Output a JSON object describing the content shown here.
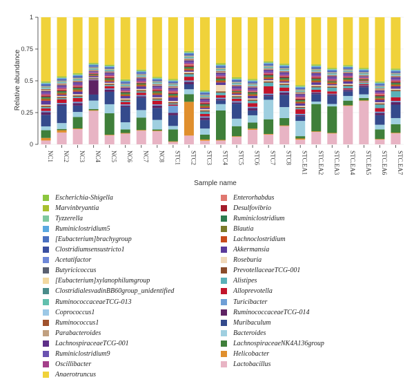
{
  "chart_data": {
    "type": "bar",
    "stacked": true,
    "xlabel": "Sample name",
    "ylabel": "Relative abundance",
    "ylim": [
      0,
      1
    ],
    "yticks": [
      "0",
      "0.25",
      "0.5",
      "0.75",
      "1"
    ],
    "categories": [
      "NC1",
      "NC2",
      "NC3",
      "NC4",
      "NC5",
      "NC6",
      "NC7",
      "NC8",
      "STC1",
      "STC2",
      "STC3",
      "STC4",
      "STC5",
      "STC6",
      "STC7",
      "STC8",
      "STC.EA1",
      "STC.EA2",
      "STC.EA3",
      "STC.EA4",
      "STC.EA5",
      "STC.EA6",
      "STC.EA7"
    ],
    "series": [
      {
        "name": "Lactobacillus",
        "color": "#e8b4c4",
        "values": [
          0.03,
          0.1,
          0.12,
          0.28,
          0.08,
          0.09,
          0.11,
          0.11,
          0.02,
          0.07,
          0.03,
          0.03,
          0.06,
          0.12,
          0.08,
          0.15,
          0.04,
          0.1,
          0.09,
          0.33,
          0.36,
          0.04,
          0.09
        ]
      },
      {
        "name": "Helicobacter",
        "color": "#e08f2d",
        "values": [
          0.02,
          0.02,
          0.005,
          0.005,
          0.005,
          0.005,
          0.005,
          0.005,
          0.005,
          0.27,
          0.01,
          0.005,
          0.005,
          0.01,
          0.005,
          0.005,
          0.01,
          0.005,
          0.005,
          0.005,
          0.005,
          0.005,
          0.005
        ]
      },
      {
        "name": "LachnospiraceaeNK4A136group",
        "color": "#3f7f3a",
        "values": [
          0.06,
          0.01,
          0.09,
          0.01,
          0.19,
          0.03,
          0.1,
          0.01,
          0.1,
          0.06,
          0.04,
          0.23,
          0.08,
          0.05,
          0.12,
          0.06,
          0.02,
          0.22,
          0.22,
          0.04,
          0.02,
          0.08,
          0.07
        ]
      },
      {
        "name": "Bacteroides",
        "color": "#9fcfe0",
        "values": [
          0.03,
          0.05,
          0.04,
          0.07,
          0.08,
          0.06,
          0.06,
          0.08,
          0.03,
          0.04,
          0.05,
          0.05,
          0.06,
          0.06,
          0.16,
          0.09,
          0.13,
          0.02,
          0.02,
          0.04,
          0.03,
          0.04,
          0.05
        ]
      },
      {
        "name": "Muribaculum",
        "color": "#344a8c",
        "values": [
          0.09,
          0.15,
          0.05,
          0.05,
          0.11,
          0.13,
          0.1,
          0.1,
          0.09,
          0.04,
          0.07,
          0.03,
          0.12,
          0.04,
          0.03,
          0.1,
          0.04,
          0.06,
          0.07,
          0.04,
          0.06,
          0.08,
          0.11
        ]
      },
      {
        "name": "RuminococcaceaeTCG-014",
        "color": "#5e2363",
        "values": [
          0.02,
          0.01,
          0.02,
          0.12,
          0.02,
          0.01,
          0.01,
          0.02,
          0.02,
          0.02,
          0.02,
          0.01,
          0.01,
          0.02,
          0.01,
          0.02,
          0.01,
          0.01,
          0.01,
          0.01,
          0.01,
          0.02,
          0.02
        ]
      },
      {
        "name": "Turicibacter",
        "color": "#6f9fd6",
        "values": [
          0.01,
          0.01,
          0.01,
          0.005,
          0.01,
          0.01,
          0.01,
          0.01,
          0.06,
          0.01,
          0.01,
          0.01,
          0.01,
          0.01,
          0.01,
          0.01,
          0.01,
          0.005,
          0.005,
          0.005,
          0.005,
          0.01,
          0.01
        ]
      },
      {
        "name": "Alloprevotella",
        "color": "#c2142b",
        "values": [
          0.02,
          0.03,
          0.03,
          0.005,
          0.02,
          0.02,
          0.02,
          0.03,
          0.01,
          0.03,
          0.02,
          0.02,
          0.02,
          0.03,
          0.06,
          0.03,
          0.04,
          0.02,
          0.02,
          0.01,
          0.01,
          0.03,
          0.03
        ]
      },
      {
        "name": "Alistipes",
        "color": "#5ab0b8",
        "values": [
          0.01,
          0.01,
          0.01,
          0.005,
          0.01,
          0.01,
          0.01,
          0.01,
          0.01,
          0.02,
          0.02,
          0.02,
          0.01,
          0.02,
          0.03,
          0.02,
          0.01,
          0.02,
          0.03,
          0.02,
          0.01,
          0.03,
          0.05
        ]
      },
      {
        "name": "PrevotellaceaeTCG-001",
        "color": "#8a4b2a",
        "values": [
          0.01,
          0.01,
          0.01,
          0.005,
          0.01,
          0.01,
          0.01,
          0.01,
          0.01,
          0.01,
          0.01,
          0.01,
          0.01,
          0.01,
          0.01,
          0.01,
          0.01,
          0.01,
          0.01,
          0.01,
          0.005,
          0.01,
          0.01
        ]
      },
      {
        "name": "Roseburia",
        "color": "#f0d8b8",
        "values": [
          0.01,
          0.01,
          0.01,
          0.005,
          0.01,
          0.01,
          0.01,
          0.01,
          0.01,
          0.01,
          0.01,
          0.05,
          0.01,
          0.01,
          0.01,
          0.01,
          0.01,
          0.01,
          0.01,
          0.01,
          0.005,
          0.01,
          0.01
        ]
      },
      {
        "name": "Akkermansia",
        "color": "#5a3a9a",
        "values": [
          0.03,
          0.01,
          0.02,
          0.01,
          0.01,
          0.02,
          0.02,
          0.02,
          0.03,
          0.01,
          0.01,
          0.02,
          0.01,
          0.02,
          0.01,
          0.01,
          0.02,
          0.02,
          0.01,
          0.02,
          0.005,
          0.02,
          0.02
        ]
      },
      {
        "name": "Lachnoclostridium",
        "color": "#c84a1a",
        "values": [
          0.01,
          0.01,
          0.01,
          0.005,
          0.01,
          0.01,
          0.01,
          0.01,
          0.01,
          0.01,
          0.01,
          0.01,
          0.01,
          0.01,
          0.01,
          0.01,
          0.01,
          0.01,
          0.01,
          0.01,
          0.005,
          0.01,
          0.01
        ]
      },
      {
        "name": "Blautia",
        "color": "#7a7a2a",
        "values": [
          0.01,
          0.01,
          0.01,
          0.005,
          0.01,
          0.01,
          0.01,
          0.01,
          0.01,
          0.01,
          0.01,
          0.01,
          0.005,
          0.01,
          0.01,
          0.01,
          0.01,
          0.01,
          0.01,
          0.01,
          0.005,
          0.01,
          0.01
        ]
      },
      {
        "name": "Ruminiclostridium",
        "color": "#2e7a4f",
        "values": [
          0.01,
          0.01,
          0.01,
          0.005,
          0.01,
          0.01,
          0.005,
          0.01,
          0.01,
          0.01,
          0.01,
          0.01,
          0.005,
          0.01,
          0.01,
          0.01,
          0.01,
          0.01,
          0.005,
          0.01,
          0.005,
          0.01,
          0.01
        ]
      },
      {
        "name": "Desulfovibrio",
        "color": "#a31b2a",
        "values": [
          0.01,
          0.01,
          0.01,
          0.005,
          0.01,
          0.005,
          0.005,
          0.01,
          0.01,
          0.01,
          0.01,
          0.01,
          0.005,
          0.005,
          0.01,
          0.01,
          0.01,
          0.01,
          0.005,
          0.005,
          0.005,
          0.01,
          0.01
        ]
      },
      {
        "name": "Enterorhabdus",
        "color": "#e07870",
        "values": [
          0.005,
          0.01,
          0.005,
          0.005,
          0.01,
          0.005,
          0.005,
          0.005,
          0.01,
          0.01,
          0.005,
          0.005,
          0.005,
          0.005,
          0.005,
          0.005,
          0.01,
          0.005,
          0.005,
          0.005,
          0.005,
          0.01,
          0.005
        ]
      },
      {
        "name": "Oscillibacter",
        "color": "#a4408a",
        "values": [
          0.01,
          0.01,
          0.01,
          0.005,
          0.01,
          0.01,
          0.01,
          0.01,
          0.01,
          0.01,
          0.01,
          0.01,
          0.01,
          0.01,
          0.01,
          0.01,
          0.01,
          0.01,
          0.01,
          0.01,
          0.005,
          0.01,
          0.01
        ]
      },
      {
        "name": "Ruminiclostridium9",
        "color": "#6a52b0",
        "values": [
          0.01,
          0.01,
          0.01,
          0.005,
          0.01,
          0.01,
          0.01,
          0.01,
          0.01,
          0.01,
          0.01,
          0.01,
          0.01,
          0.01,
          0.01,
          0.01,
          0.01,
          0.01,
          0.01,
          0.01,
          0.005,
          0.01,
          0.01
        ]
      },
      {
        "name": "LachnospiraceaeTCG-001",
        "color": "#5e2f88",
        "values": [
          0.01,
          0.01,
          0.01,
          0.005,
          0.01,
          0.01,
          0.01,
          0.01,
          0.01,
          0.01,
          0.01,
          0.01,
          0.01,
          0.01,
          0.01,
          0.01,
          0.01,
          0.01,
          0.01,
          0.01,
          0.005,
          0.01,
          0.01
        ]
      },
      {
        "name": "Parabacteroides",
        "color": "#c0a080",
        "values": [
          0.01,
          0.01,
          0.005,
          0.005,
          0.005,
          0.005,
          0.005,
          0.01,
          0.01,
          0.01,
          0.005,
          0.01,
          0.005,
          0.005,
          0.005,
          0.005,
          0.01,
          0.005,
          0.005,
          0.005,
          0.005,
          0.01,
          0.005
        ]
      },
      {
        "name": "Ruminococcus1",
        "color": "#a0522d",
        "values": [
          0.005,
          0.005,
          0.005,
          0.005,
          0.005,
          0.005,
          0.005,
          0.005,
          0.005,
          0.005,
          0.005,
          0.005,
          0.005,
          0.005,
          0.005,
          0.005,
          0.005,
          0.005,
          0.005,
          0.005,
          0.005,
          0.005,
          0.005
        ]
      },
      {
        "name": "Coprococcus1",
        "color": "#9cc8e6",
        "values": [
          0.005,
          0.005,
          0.005,
          0.005,
          0.005,
          0.005,
          0.005,
          0.005,
          0.005,
          0.005,
          0.005,
          0.005,
          0.005,
          0.005,
          0.005,
          0.005,
          0.005,
          0.005,
          0.005,
          0.005,
          0.005,
          0.005,
          0.005
        ]
      },
      {
        "name": "RuminococcaceaeTCG-013",
        "color": "#62c0ae",
        "values": [
          0.005,
          0.005,
          0.005,
          0.005,
          0.005,
          0.005,
          0.005,
          0.005,
          0.005,
          0.005,
          0.005,
          0.005,
          0.005,
          0.005,
          0.005,
          0.005,
          0.005,
          0.005,
          0.005,
          0.005,
          0.005,
          0.005,
          0.005
        ]
      },
      {
        "name": "ClostridialesvadinBB60group_unidentified",
        "color": "#4a8c8a",
        "values": [
          0.005,
          0.005,
          0.005,
          0.005,
          0.005,
          0.005,
          0.005,
          0.005,
          0.005,
          0.005,
          0.005,
          0.005,
          0.005,
          0.005,
          0.005,
          0.005,
          0.005,
          0.005,
          0.005,
          0.005,
          0.005,
          0.005,
          0.005
        ]
      },
      {
        "name": "[Eubacterium]xylanophilumgroup",
        "color": "#f2d8a0",
        "values": [
          0.005,
          0.005,
          0.005,
          0.005,
          0.005,
          0.005,
          0.005,
          0.005,
          0.005,
          0.005,
          0.005,
          0.005,
          0.005,
          0.005,
          0.005,
          0.005,
          0.005,
          0.005,
          0.005,
          0.005,
          0.005,
          0.005,
          0.005
        ]
      },
      {
        "name": "Butyricicoccus",
        "color": "#5a6070",
        "values": [
          0.005,
          0.005,
          0.005,
          0.005,
          0.005,
          0.005,
          0.005,
          0.005,
          0.005,
          0.005,
          0.005,
          0.005,
          0.005,
          0.005,
          0.005,
          0.005,
          0.005,
          0.005,
          0.005,
          0.005,
          0.005,
          0.005,
          0.005
        ]
      },
      {
        "name": "Acetatifactor",
        "color": "#6e88d8",
        "values": [
          0.005,
          0.005,
          0.005,
          0.005,
          0.005,
          0.005,
          0.005,
          0.005,
          0.005,
          0.005,
          0.005,
          0.005,
          0.005,
          0.005,
          0.005,
          0.005,
          0.005,
          0.005,
          0.005,
          0.005,
          0.005,
          0.005,
          0.005
        ]
      },
      {
        "name": "Clostridiumsensustricto1",
        "color": "#3a4fa0",
        "values": [
          0.005,
          0.005,
          0.005,
          0.005,
          0.005,
          0.005,
          0.005,
          0.005,
          0.005,
          0.005,
          0.005,
          0.005,
          0.005,
          0.005,
          0.005,
          0.005,
          0.005,
          0.005,
          0.005,
          0.005,
          0.005,
          0.005,
          0.005
        ]
      },
      {
        "name": "[Eubacterium]brachygroup",
        "color": "#4a70c0",
        "values": [
          0.005,
          0.005,
          0.005,
          0.005,
          0.005,
          0.005,
          0.005,
          0.005,
          0.005,
          0.005,
          0.005,
          0.005,
          0.005,
          0.005,
          0.005,
          0.005,
          0.005,
          0.005,
          0.005,
          0.005,
          0.005,
          0.005,
          0.005
        ]
      },
      {
        "name": "Ruminiclostridium5",
        "color": "#5aa8e0",
        "values": [
          0.005,
          0.005,
          0.005,
          0.005,
          0.005,
          0.005,
          0.005,
          0.005,
          0.005,
          0.005,
          0.005,
          0.005,
          0.005,
          0.005,
          0.005,
          0.005,
          0.005,
          0.005,
          0.005,
          0.005,
          0.005,
          0.005,
          0.005
        ]
      },
      {
        "name": "Tyzzerella",
        "color": "#7fc8a0",
        "values": [
          0.005,
          0.005,
          0.005,
          0.005,
          0.005,
          0.005,
          0.005,
          0.005,
          0.005,
          0.005,
          0.005,
          0.005,
          0.005,
          0.005,
          0.005,
          0.005,
          0.005,
          0.005,
          0.005,
          0.005,
          0.005,
          0.005,
          0.005
        ]
      },
      {
        "name": "Marvinbryantia",
        "color": "#a8c030",
        "values": [
          0.005,
          0.005,
          0.005,
          0.005,
          0.005,
          0.005,
          0.005,
          0.005,
          0.005,
          0.005,
          0.005,
          0.005,
          0.005,
          0.005,
          0.005,
          0.005,
          0.005,
          0.005,
          0.005,
          0.005,
          0.005,
          0.005,
          0.005
        ]
      },
      {
        "name": "Escherichia-Shigella",
        "color": "#8cc63f",
        "values": [
          0.005,
          0.005,
          0.005,
          0.005,
          0.005,
          0.005,
          0.005,
          0.005,
          0.005,
          0.005,
          0.005,
          0.005,
          0.005,
          0.005,
          0.005,
          0.005,
          0.005,
          0.005,
          0.005,
          0.005,
          0.005,
          0.005,
          0.005
        ]
      },
      {
        "name": "Anaerotruncus",
        "color": "#f0d23a",
        "values": [
          0.5,
          0.5,
          0.44,
          0.38,
          0.42,
          0.52,
          0.42,
          0.5,
          0.52,
          0.27,
          0.6,
          0.36,
          0.48,
          0.51,
          0.36,
          0.38,
          0.58,
          0.38,
          0.42,
          0.41,
          0.42,
          0.54,
          0.42
        ]
      }
    ],
    "legend_left": [
      "Escherichia-Shigella",
      "Marvinbryantia",
      "Tyzzerella",
      "Ruminiclostridium5",
      "[Eubacterium]brachygroup",
      "Clostridiumsensustricto1",
      "Acetatifactor",
      "Butyricicoccus",
      "[Eubacterium]xylanophilumgroup",
      "ClostridialesvadinBB60group_unidentified",
      "RuminococcaceaeTCG-013",
      "Coprococcus1",
      "Ruminococcus1",
      "Parabacteroides",
      "LachnospiraceaeTCG-001",
      "Ruminiclostridium9",
      "Oscillibacter",
      "Anaerotruncus"
    ],
    "legend_right": [
      "Enterorhabdus",
      "Desulfovibrio",
      "Ruminiclostridium",
      "Blautia",
      "Lachnoclostridium",
      "Akkermansia",
      "Roseburia",
      "PrevotellaceaeTCG-001",
      "Alistipes",
      "Alloprevotella",
      "Turicibacter",
      "RuminococcaceaeTCG-014",
      "Muribaculum",
      "Bacteroides",
      "LachnospiraceaeNK4A136group",
      "Helicobacter",
      "Lactobacillus"
    ]
  }
}
